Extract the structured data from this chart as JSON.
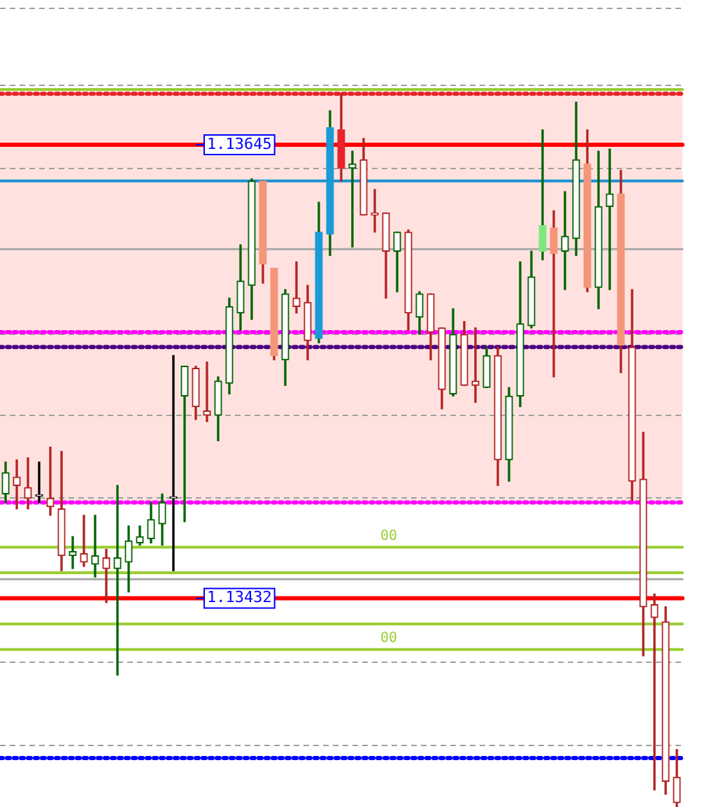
{
  "chart_data": {
    "type": "candlestick",
    "categories": [
      null,
      null,
      null,
      null,
      null,
      null,
      null,
      null,
      null,
      null,
      null,
      null,
      null,
      null,
      null,
      null,
      null,
      null,
      null,
      null,
      null,
      null,
      null,
      null,
      null,
      null,
      null,
      null,
      null,
      null,
      null,
      null,
      null,
      null,
      null,
      null,
      null,
      null,
      null,
      null,
      null,
      null,
      null,
      null,
      null,
      null,
      null,
      null,
      null,
      null,
      null,
      null,
      null,
      null,
      null,
      null,
      null,
      null,
      null,
      null,
      null
    ],
    "ohlc": [
      [
        1.13481,
        1.13496,
        1.13477,
        1.13491
      ],
      [
        1.13489,
        1.13497,
        1.13474,
        1.13485
      ],
      [
        1.13484,
        1.13498,
        1.13474,
        1.13479
      ],
      [
        1.1348,
        1.13496,
        1.13477,
        1.1348
      ],
      [
        1.13479,
        1.13503,
        1.13471,
        1.13475
      ],
      [
        1.13474,
        1.13501,
        1.13445,
        1.13452
      ],
      [
        1.13452,
        1.13461,
        1.13446,
        1.13454
      ],
      [
        1.13453,
        1.13471,
        1.13447,
        1.13449
      ],
      [
        1.13448,
        1.13471,
        1.13442,
        1.13452
      ],
      [
        1.13451,
        1.13455,
        1.1343,
        1.13446
      ],
      [
        1.13446,
        1.13485,
        1.13396,
        1.13451
      ],
      [
        1.13449,
        1.13466,
        1.13435,
        1.13459
      ],
      [
        1.13458,
        1.13466,
        1.13457,
        1.13461
      ],
      [
        1.1346,
        1.13477,
        1.13458,
        1.13469
      ],
      [
        1.13467,
        1.13481,
        1.13457,
        1.13477
      ],
      [
        1.13479,
        1.13546,
        1.13445,
        1.13479
      ],
      [
        1.13527,
        1.13541,
        1.13468,
        1.13541
      ],
      [
        1.1354,
        1.13541,
        1.13516,
        1.13522
      ],
      [
        1.1352,
        1.13543,
        1.13515,
        1.13518
      ],
      [
        1.13518,
        1.13536,
        1.13506,
        1.13534
      ],
      [
        1.13533,
        1.13573,
        1.13528,
        1.13569
      ],
      [
        1.13566,
        1.13598,
        1.13558,
        1.13581
      ],
      [
        1.13579,
        1.13629,
        1.13563,
        1.13628
      ],
      [
        1.13628,
        1.13628,
        1.1358,
        1.13589
      ],
      [
        1.13587,
        1.13587,
        1.13544,
        1.13546
      ],
      [
        1.13544,
        1.13577,
        1.13532,
        1.13575
      ],
      [
        1.13573,
        1.1359,
        1.13566,
        1.13569
      ],
      [
        1.13571,
        1.13579,
        1.13544,
        1.13553
      ],
      [
        1.13554,
        1.13618,
        1.13552,
        1.13604
      ],
      [
        1.13603,
        1.13661,
        1.13593,
        1.13653
      ],
      [
        1.13652,
        1.13669,
        1.13628,
        1.13634
      ],
      [
        1.13634,
        1.13642,
        1.13597,
        1.13636
      ],
      [
        1.13638,
        1.13648,
        1.13612,
        1.13612
      ],
      [
        1.13613,
        1.13624,
        1.13604,
        1.13612
      ],
      [
        1.13613,
        1.13613,
        1.13573,
        1.13595
      ],
      [
        1.13595,
        1.13604,
        1.13576,
        1.13604
      ],
      [
        1.13604,
        1.13605,
        1.13558,
        1.13566
      ],
      [
        1.13564,
        1.13576,
        1.13556,
        1.13575
      ],
      [
        1.13575,
        1.13575,
        1.13544,
        1.13557
      ],
      [
        1.13559,
        1.13559,
        1.13521,
        1.1353
      ],
      [
        1.13528,
        1.13568,
        1.13527,
        1.13556
      ],
      [
        1.13556,
        1.13562,
        1.13532,
        1.13532
      ],
      [
        1.13534,
        1.13559,
        1.13524,
        1.13532
      ],
      [
        1.13531,
        1.1355,
        1.13531,
        1.13546
      ],
      [
        1.13546,
        1.1355,
        1.13485,
        1.13497
      ],
      [
        1.13497,
        1.13531,
        1.13487,
        1.13527
      ],
      [
        1.13527,
        1.1359,
        1.13522,
        1.13561
      ],
      [
        1.1356,
        1.13595,
        1.13559,
        1.13583
      ],
      [
        1.13595,
        1.13652,
        1.13591,
        1.13607
      ],
      [
        1.13606,
        1.13614,
        1.13536,
        1.13594
      ],
      [
        1.13595,
        1.13623,
        1.13577,
        1.13602
      ],
      [
        1.13601,
        1.13665,
        1.13593,
        1.13638
      ],
      [
        1.13636,
        1.13652,
        1.13576,
        1.13578
      ],
      [
        1.13578,
        1.13642,
        1.13568,
        1.13616
      ],
      [
        1.13616,
        1.13643,
        1.13577,
        1.13622
      ],
      [
        1.13622,
        1.13633,
        1.13538,
        1.13551
      ],
      [
        1.1355,
        1.13577,
        1.13478,
        1.13487
      ],
      [
        1.13488,
        1.1351,
        1.13405,
        1.13428
      ],
      [
        1.13429,
        1.13434,
        1.13342,
        1.13423
      ],
      [
        1.13421,
        1.13428,
        1.1334,
        1.13346
      ],
      [
        1.13348,
        1.13361,
        1.13334,
        1.13336
      ]
    ],
    "colors": [
      "#006400",
      "#b22222",
      "#b22222",
      "#000000",
      "#b22222",
      "#b22222",
      "#006400",
      "#b22222",
      "#006400",
      "#b22222",
      "#006400",
      "#006400",
      "#006400",
      "#006400",
      "#006400",
      "#000000",
      "#006400",
      "#b22222",
      "#b22222",
      "#006400",
      "#006400",
      "#006400",
      "#006400",
      "#f4967a",
      "#f4967a",
      "#006400",
      "#b22222",
      "#b22222",
      "#1a9ad6",
      "#1a9ad6",
      "#e8242a",
      "#006400",
      "#b22222",
      "#b22222",
      "#b22222",
      "#006400",
      "#b22222",
      "#006400",
      "#b22222",
      "#b22222",
      "#006400",
      "#b22222",
      "#b22222",
      "#006400",
      "#b22222",
      "#006400",
      "#006400",
      "#006400",
      "#7ee87e",
      "#f4967a",
      "#006400",
      "#006400",
      "#f4967a",
      "#006400",
      "#006400",
      "#f4967a",
      "#b22222",
      "#b22222",
      "#b22222",
      "#b22222",
      "#b22222"
    ],
    "ylim": [
      1.13334,
      1.13713
    ],
    "yticks": [
      {
        "value": 1.13709,
        "label": null
      },
      {
        "value": 1.13673,
        "label": null
      },
      {
        "value": 1.13634,
        "label": null
      },
      {
        "value": 1.13556,
        "label": null
      },
      {
        "value": 1.13518,
        "label": null
      },
      {
        "value": 1.13479,
        "label": null
      },
      {
        "value": 1.13402,
        "label": null
      },
      {
        "value": 1.13363,
        "label": null
      }
    ],
    "grid": "y",
    "annotations": [
      {
        "text": "00",
        "y": 1.13456
      },
      {
        "text": "00",
        "y": 1.13408
      }
    ],
    "tick_labels": false,
    "bands": [
      {
        "axis": "y",
        "from": 1.13478,
        "to": 1.13669,
        "color": "#ffe2df"
      }
    ],
    "ref_lines": [
      {
        "axis": "y",
        "value": 1.13671,
        "color": "#9acd32"
      },
      {
        "axis": "y",
        "value": 1.13456,
        "color": "#9acd32"
      },
      {
        "axis": "y",
        "value": 1.13444,
        "color": "#9acd32"
      },
      {
        "axis": "y",
        "value": 1.1342,
        "color": "#9acd32"
      },
      {
        "axis": "y",
        "value": 1.13408,
        "color": "#9acd32"
      },
      {
        "axis": "y",
        "value": 1.13596,
        "color": "#a9a9a9"
      },
      {
        "axis": "y",
        "value": 1.13441,
        "color": "#a9a9a9"
      },
      {
        "axis": "y",
        "value": 1.13628,
        "color": "#1e90d0"
      },
      {
        "axis": "y",
        "value": 1.13669,
        "color": "#e8242a",
        "line_style": "dotted"
      },
      {
        "axis": "y",
        "value": 1.13557,
        "color": "#ff00ff",
        "line_style": "dotted"
      },
      {
        "axis": "y",
        "value": 1.1355,
        "color": "#4b0082",
        "line_style": "dotted"
      },
      {
        "axis": "y",
        "value": 1.13477,
        "color": "#ff00ff",
        "line_style": "dotted"
      },
      {
        "axis": "y",
        "value": 1.13357,
        "color": "#0000ff",
        "line_style": "dotted"
      },
      {
        "axis": "y",
        "value": 1.13645,
        "color": "#ff0000",
        "label": "1.13645"
      },
      {
        "axis": "y",
        "value": 1.13432,
        "color": "#ff0000",
        "label": "1.13432"
      }
    ]
  }
}
